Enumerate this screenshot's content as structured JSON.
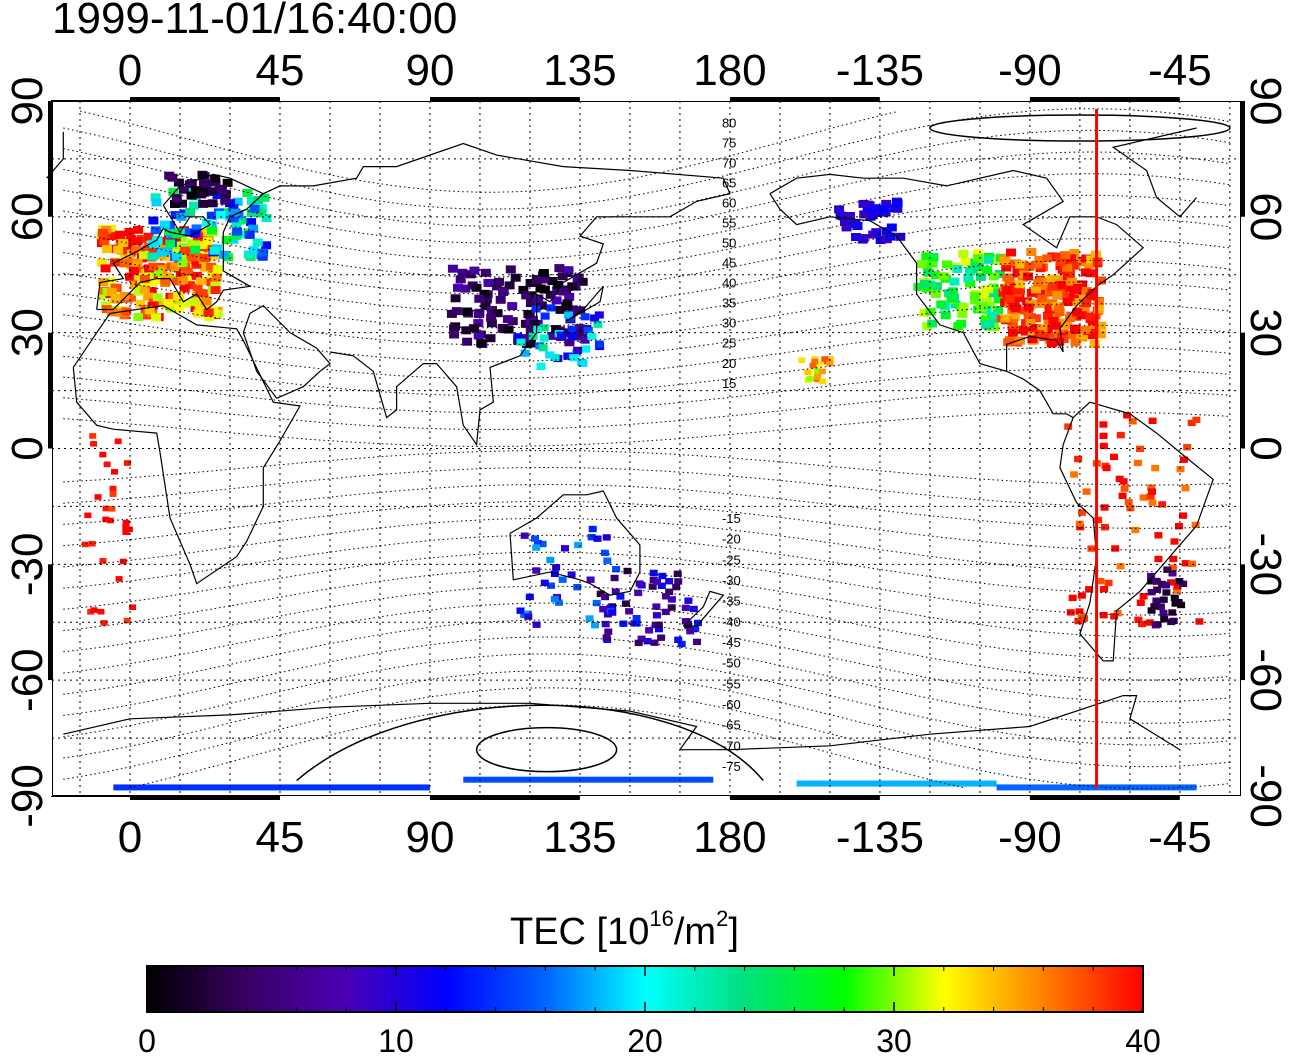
{
  "title": "1999-11-01/16:40:00",
  "map": {
    "x_tick_labels": [
      "0",
      "45",
      "90",
      "135",
      "180",
      "-135",
      "-90",
      "-45"
    ],
    "y_tick_labels": [
      "90",
      "60",
      "30",
      "0",
      "-30",
      "-60",
      "-90"
    ],
    "contour_labels_north": [
      "80",
      "75",
      "70",
      "65",
      "60",
      "55",
      "50",
      "45",
      "40",
      "35",
      "30",
      "25",
      "20",
      "15"
    ],
    "contour_labels_south": [
      "-15",
      "-20",
      "-25",
      "-30",
      "-35",
      "-40",
      "-45",
      "-50",
      "-55",
      "-60",
      "-65",
      "-70",
      "-75"
    ],
    "marker_line_longitude": -70,
    "marker_line_color": "#ff0000"
  },
  "colorbar": {
    "label_prefix": "TEC  [10",
    "label_exp1": "16",
    "label_mid": "/m",
    "label_exp2": "2",
    "label_suffix": "]",
    "tick_labels": [
      "0",
      "10",
      "20",
      "30",
      "40"
    ],
    "range": [
      0,
      40
    ],
    "colors": [
      "#000000",
      "#3a0064",
      "#4a00b4",
      "#0000ff",
      "#0064ff",
      "#00ffff",
      "#00e080",
      "#00ff00",
      "#ffff00",
      "#ff8000",
      "#ff0000"
    ]
  }
}
